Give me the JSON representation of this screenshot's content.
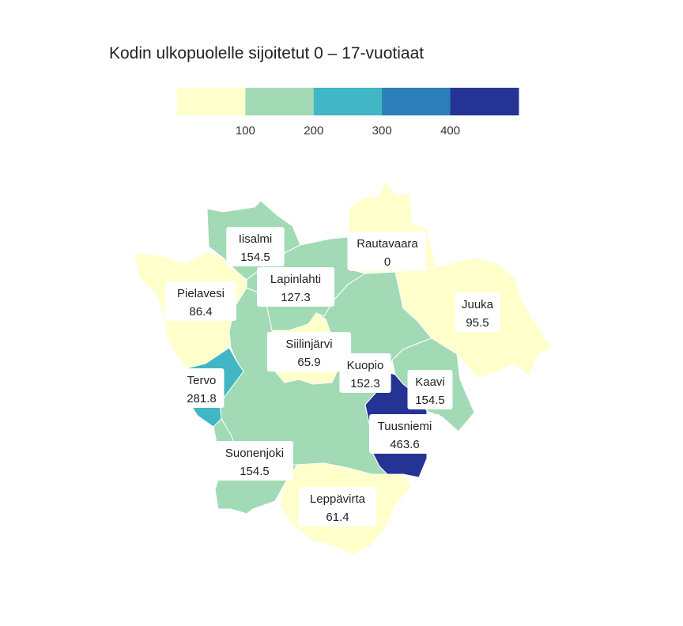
{
  "title": "Kodin ulkopuolelle sijoitetut 0 – 17-vuotiaat",
  "legend": {
    "bins": [
      {
        "from": 0,
        "to": 100,
        "color": "#ffffcc"
      },
      {
        "from": 100,
        "to": 200,
        "color": "#a1dab4"
      },
      {
        "from": 200,
        "to": 300,
        "color": "#41b6c4"
      },
      {
        "from": 300,
        "to": 400,
        "color": "#2c7fb8"
      },
      {
        "from": 400,
        "to": 500,
        "color": "#253494"
      }
    ],
    "ticks": [
      "100",
      "200",
      "300",
      "400"
    ]
  },
  "municipalities": [
    {
      "key": "iisalmi",
      "name": "Iisalmi",
      "value": "154.5",
      "color": "#a1dab4"
    },
    {
      "key": "rautavaara",
      "name": "Rautavaara",
      "value": "0",
      "color": "#ffffcc"
    },
    {
      "key": "lapinlahti",
      "name": "Lapinlahti",
      "value": "127.3",
      "color": "#a1dab4"
    },
    {
      "key": "pielavesi",
      "name": "Pielavesi",
      "value": "86.4",
      "color": "#ffffcc"
    },
    {
      "key": "juuka",
      "name": "Juuka",
      "value": "95.5",
      "color": "#ffffcc"
    },
    {
      "key": "siilinjarvi",
      "name": "Siilinjärvi",
      "value": "65.9",
      "color": "#ffffcc"
    },
    {
      "key": "kuopio",
      "name": "Kuopio",
      "value": "152.3",
      "color": "#a1dab4"
    },
    {
      "key": "tervo",
      "name": "Tervo",
      "value": "281.8",
      "color": "#41b6c4"
    },
    {
      "key": "kaavi",
      "name": "Kaavi",
      "value": "154.5",
      "color": "#a1dab4"
    },
    {
      "key": "tuusniemi",
      "name": "Tuusniemi",
      "value": "463.6",
      "color": "#253494"
    },
    {
      "key": "suonenjoki",
      "name": "Suonenjoki",
      "value": "154.5",
      "color": "#a1dab4"
    },
    {
      "key": "leppavirta",
      "name": "Leppävirta",
      "value": "61.4",
      "color": "#ffffcc"
    }
  ]
}
